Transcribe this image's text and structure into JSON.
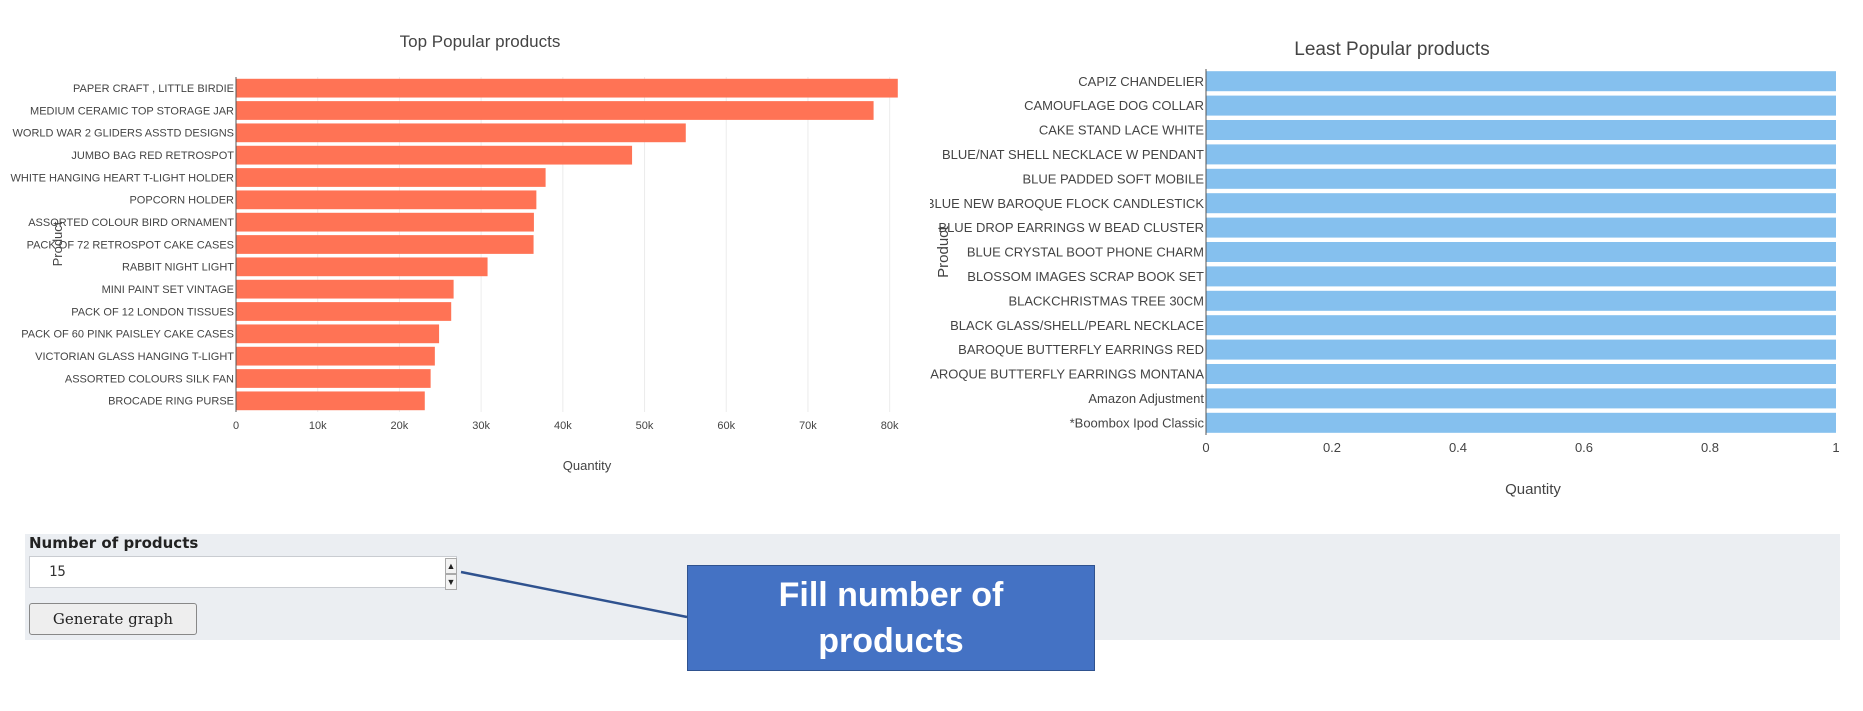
{
  "chart_data": [
    {
      "type": "bar",
      "orientation": "horizontal",
      "title": "Top Popular products",
      "xlabel": "Quantity",
      "ylabel": "Product",
      "xlim": [
        0,
        82000
      ],
      "xticks": [
        0,
        10000,
        20000,
        30000,
        40000,
        50000,
        60000,
        70000,
        80000
      ],
      "xtick_labels": [
        "0",
        "10k",
        "20k",
        "30k",
        "40k",
        "50k",
        "60k",
        "70k",
        "80k"
      ],
      "grid": true,
      "color": "#ff7355",
      "categories": [
        "PAPER CRAFT , LITTLE BIRDIE",
        "MEDIUM CERAMIC TOP STORAGE JAR",
        "WORLD WAR 2 GLIDERS ASSTD DESIGNS",
        "JUMBO BAG RED RETROSPOT",
        "WHITE HANGING HEART T-LIGHT HOLDER",
        "POPCORN HOLDER",
        "ASSORTED COLOUR BIRD ORNAMENT",
        "PACK OF 72 RETROSPOT CAKE CASES",
        "RABBIT NIGHT LIGHT",
        "MINI PAINT SET VINTAGE",
        "PACK OF 12 LONDON TISSUES",
        "PACK OF 60 PINK PAISLEY CAKE CASES",
        "VICTORIAN GLASS HANGING T-LIGHT",
        "ASSORTED COLOURS SILK FAN",
        "BROCADE RING PURSE"
      ],
      "values": [
        80995,
        78033,
        55047,
        48474,
        37891,
        36761,
        36461,
        36419,
        30788,
        26633,
        26339,
        24854,
        24337,
        23820,
        23104
      ]
    },
    {
      "type": "bar",
      "orientation": "horizontal",
      "title": "Least Popular products",
      "xlabel": "Quantity",
      "ylabel": "Product",
      "xlim": [
        0,
        1
      ],
      "xticks": [
        0,
        0.2,
        0.4,
        0.6,
        0.8,
        1
      ],
      "xtick_labels": [
        "0",
        "0.2",
        "0.4",
        "0.6",
        "0.8",
        "1"
      ],
      "grid": false,
      "color": "#85c0ee",
      "categories": [
        "CAPIZ CHANDELIER",
        "CAMOUFLAGE DOG COLLAR",
        "CAKE STAND LACE WHITE",
        "BLUE/NAT SHELL NECKLACE W PENDANT",
        "BLUE PADDED SOFT MOBILE",
        "BLUE NEW BAROQUE FLOCK CANDLESTICK",
        "BLUE DROP EARRINGS W BEAD CLUSTER",
        "BLUE CRYSTAL BOOT PHONE CHARM",
        "BLOSSOM IMAGES SCRAP BOOK SET",
        "BLACKCHRISTMAS TREE 30CM",
        "BLACK GLASS/SHELL/PEARL NECKLACE",
        "BAROQUE BUTTERFLY EARRINGS RED",
        "BAROQUE BUTTERFLY EARRINGS MONTANA",
        "Amazon Adjustment",
        "*Boombox Ipod Classic"
      ],
      "values": [
        1,
        1,
        1,
        1,
        1,
        1,
        1,
        1,
        1,
        1,
        1,
        1,
        1,
        1,
        1
      ]
    }
  ],
  "form": {
    "label": "Number of products",
    "value": "15",
    "button_label": "Generate graph",
    "spinner_up": "▲",
    "spinner_down": "▼"
  },
  "callout": {
    "text": "Fill number of products",
    "fill_color": "#4472c4",
    "line_color": "#2f528f"
  }
}
